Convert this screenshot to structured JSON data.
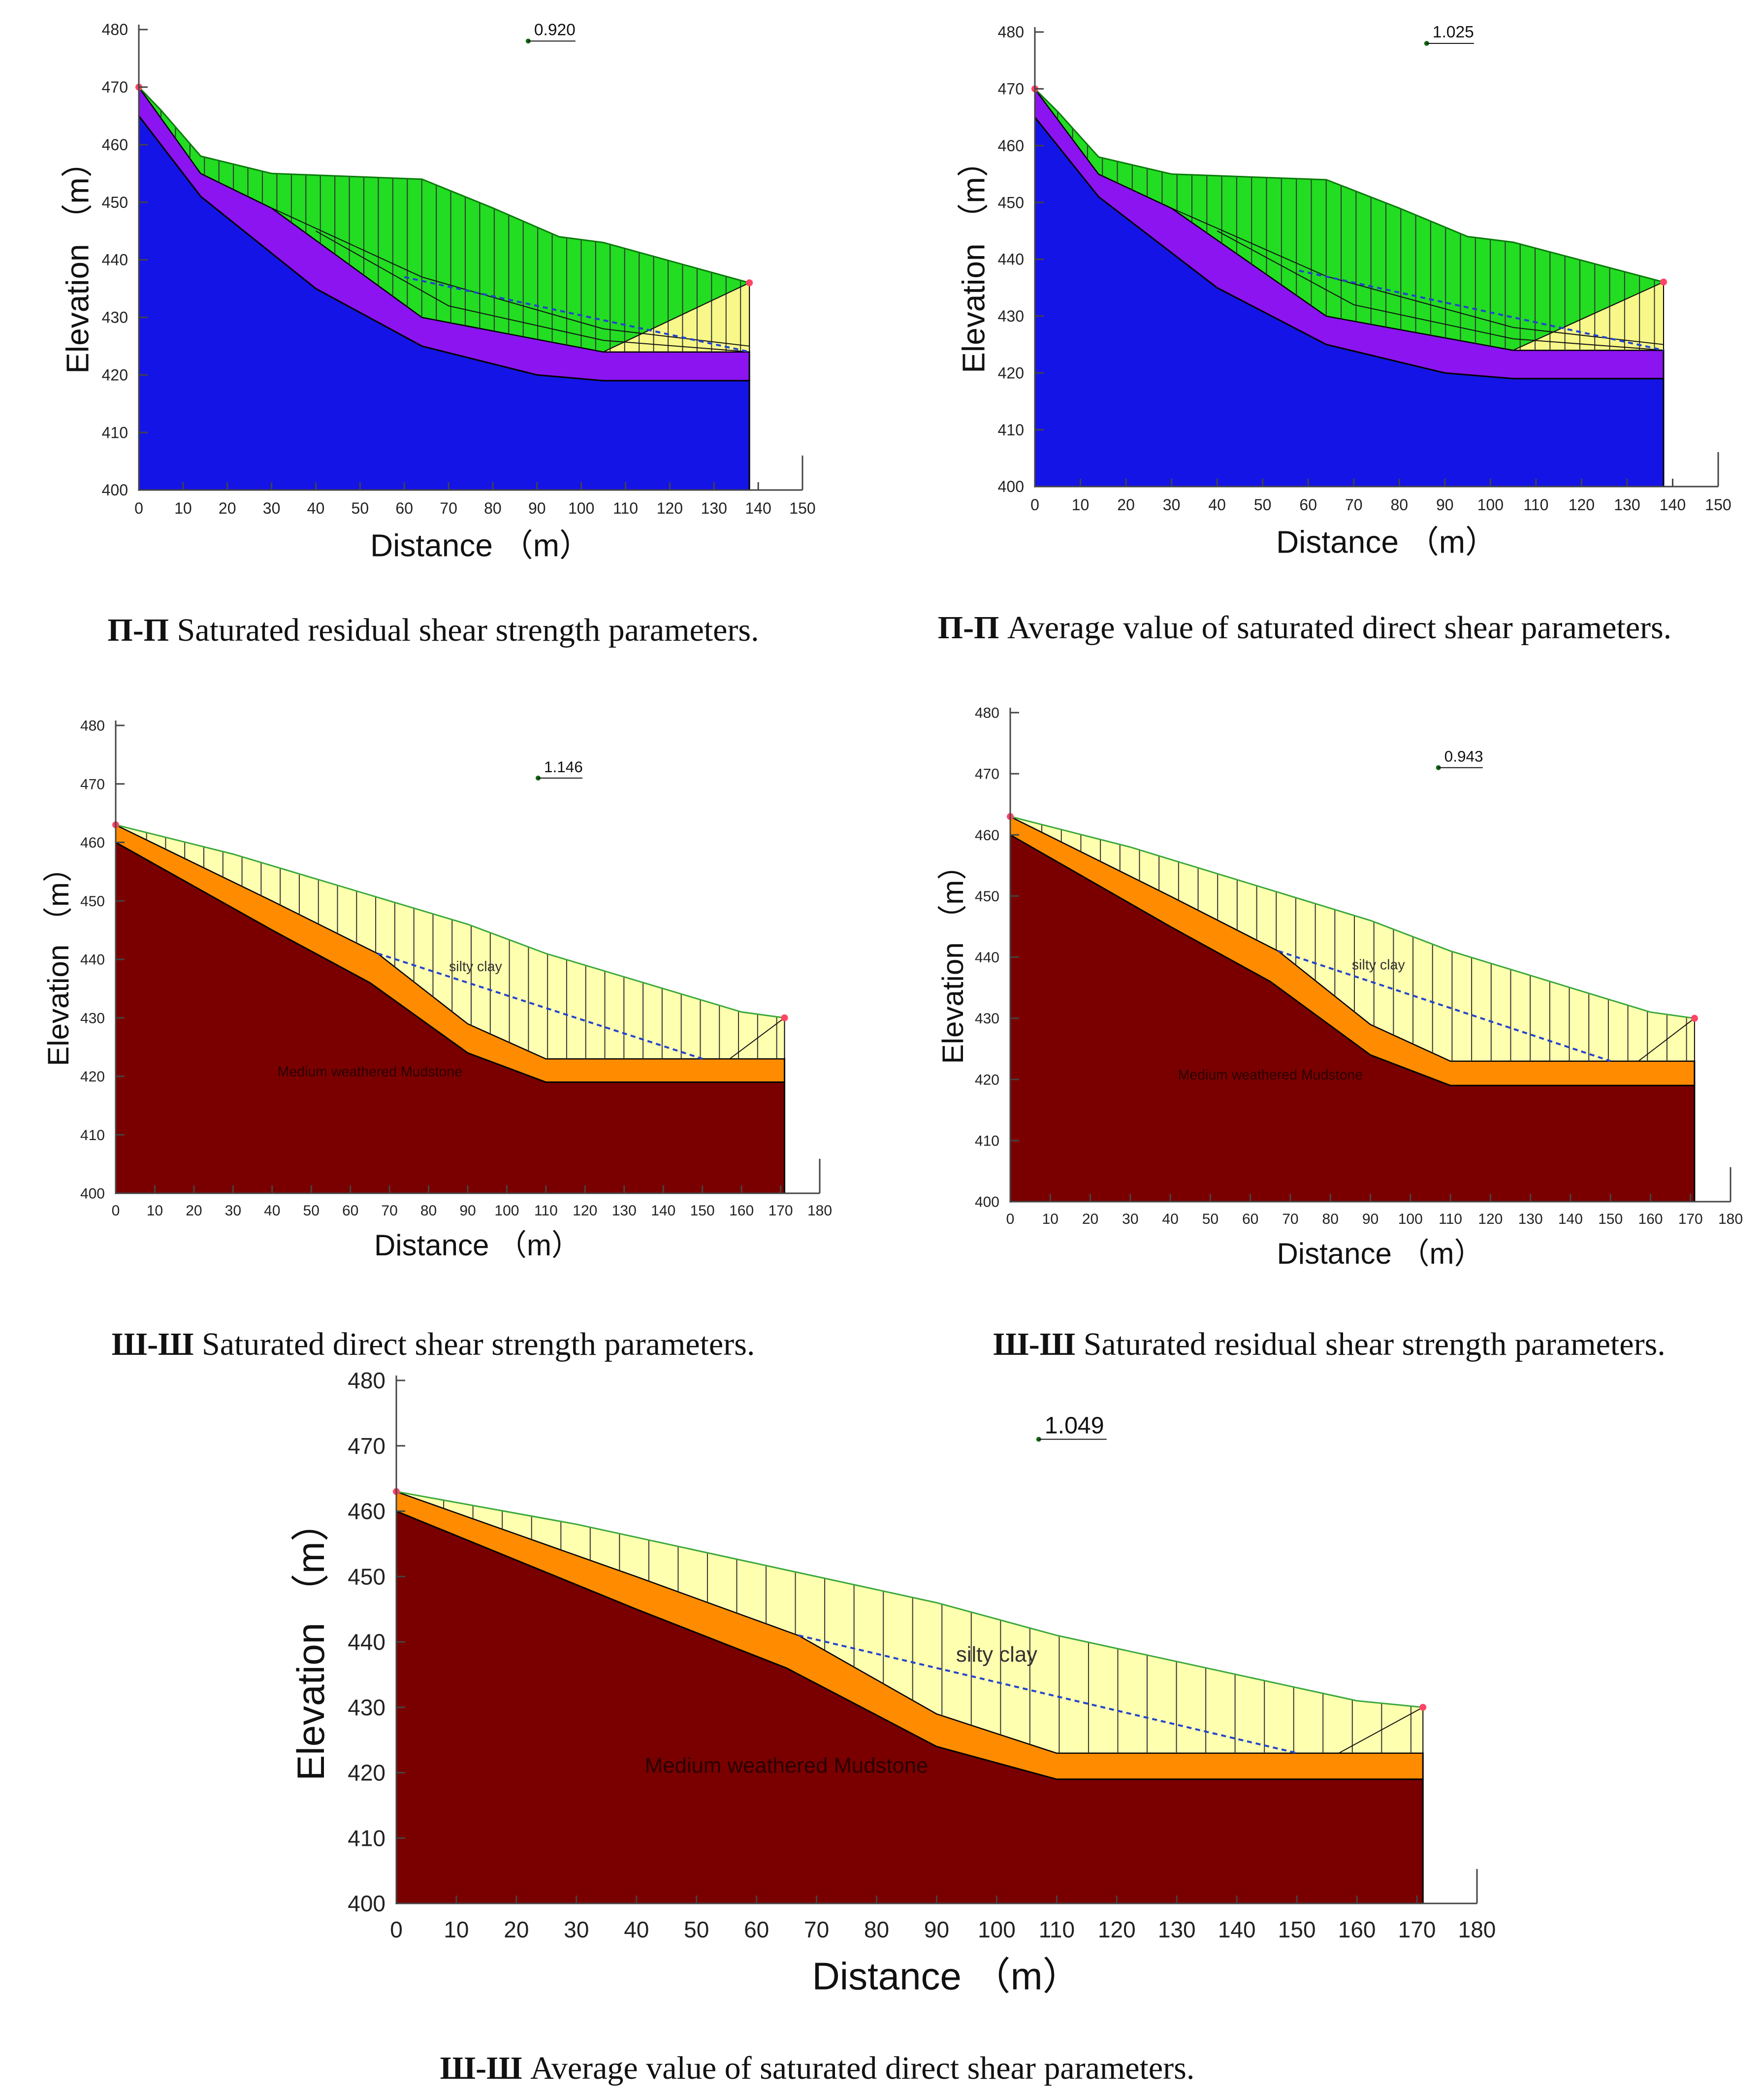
{
  "colors": {
    "bedrock_blue": "#1414e6",
    "weak_purple": "#8b14f0",
    "slide_green": "#22dd22",
    "fill_yellow": "#f7f78a",
    "mudstone": "#7a0000",
    "weak_orange": "#ff8c00",
    "silty_clay": "#ffffb0",
    "slip_dash": "#2244cc"
  },
  "panels": [
    {
      "id": "p1",
      "section": "Π-Π",
      "caption": "Saturated residual shear strength parameters.",
      "factor_of_safety": "0.920",
      "scheme": "blue-green",
      "chart_data": {
        "type": "geotechnical-section",
        "xlabel": "Distance （m）",
        "ylabel": "Elevation （m）",
        "xlim": [
          0,
          150
        ],
        "ylim": [
          400,
          480
        ],
        "xticks": [
          "0",
          "10",
          "20",
          "30",
          "40",
          "50",
          "60",
          "70",
          "80",
          "90",
          "100",
          "110",
          "120",
          "130",
          "140",
          "150"
        ],
        "yticks": [
          "400",
          "410",
          "420",
          "430",
          "440",
          "450",
          "460",
          "470",
          "480"
        ],
        "fos_point": [
          88,
          478
        ],
        "ground_surface": [
          [
            0,
            470
          ],
          [
            5,
            466
          ],
          [
            14,
            458
          ],
          [
            30,
            455
          ],
          [
            64,
            454
          ],
          [
            80,
            449
          ],
          [
            95,
            444
          ],
          [
            105,
            443
          ],
          [
            138,
            436
          ]
        ],
        "weak_layer_top": [
          [
            0,
            470
          ],
          [
            14,
            455
          ],
          [
            30,
            449
          ],
          [
            64,
            430
          ],
          [
            105,
            424
          ],
          [
            138,
            424
          ]
        ],
        "bedrock_top": [
          [
            0,
            465
          ],
          [
            14,
            451
          ],
          [
            40,
            435
          ],
          [
            64,
            425
          ],
          [
            90,
            420
          ],
          [
            105,
            419
          ],
          [
            138,
            419
          ]
        ],
        "slip_line": [
          [
            60,
            437
          ],
          [
            138,
            424
          ]
        ],
        "slice_count": 40,
        "labels": []
      }
    },
    {
      "id": "p2",
      "section": "Π-Π",
      "caption": "Average value of saturated direct shear parameters.",
      "factor_of_safety": "1.025",
      "scheme": "blue-green",
      "chart_data": {
        "type": "geotechnical-section",
        "xlabel": "Distance （m）",
        "ylabel": "Elevation （m）",
        "xlim": [
          0,
          150
        ],
        "ylim": [
          400,
          480
        ],
        "xticks": [
          "0",
          "10",
          "20",
          "30",
          "40",
          "50",
          "60",
          "70",
          "80",
          "90",
          "100",
          "110",
          "120",
          "130",
          "140",
          "150"
        ],
        "yticks": [
          "400",
          "410",
          "420",
          "430",
          "440",
          "450",
          "460",
          "470",
          "480"
        ],
        "fos_point": [
          86,
          478
        ],
        "ground_surface": [
          [
            0,
            470
          ],
          [
            5,
            466
          ],
          [
            14,
            458
          ],
          [
            30,
            455
          ],
          [
            64,
            454
          ],
          [
            80,
            449
          ],
          [
            95,
            444
          ],
          [
            105,
            443
          ],
          [
            138,
            436
          ]
        ],
        "weak_layer_top": [
          [
            0,
            470
          ],
          [
            14,
            455
          ],
          [
            30,
            449
          ],
          [
            64,
            430
          ],
          [
            105,
            424
          ],
          [
            138,
            424
          ]
        ],
        "bedrock_top": [
          [
            0,
            465
          ],
          [
            14,
            451
          ],
          [
            40,
            435
          ],
          [
            64,
            425
          ],
          [
            90,
            420
          ],
          [
            105,
            419
          ],
          [
            138,
            419
          ]
        ],
        "slip_line": [
          [
            58,
            438
          ],
          [
            138,
            424
          ]
        ],
        "slice_count": 40,
        "labels": []
      }
    },
    {
      "id": "p3",
      "section": "Ш-Ш",
      "caption": "Saturated direct shear strength parameters.",
      "factor_of_safety": "1.146",
      "scheme": "mudstone",
      "chart_data": {
        "type": "geotechnical-section",
        "xlabel": "Distance （m）",
        "ylabel": "Elevation （m）",
        "xlim": [
          0,
          180
        ],
        "ylim": [
          400,
          480
        ],
        "xticks": [
          "0",
          "10",
          "20",
          "30",
          "40",
          "50",
          "60",
          "70",
          "80",
          "90",
          "100",
          "110",
          "120",
          "130",
          "140",
          "150",
          "160",
          "170",
          "180"
        ],
        "yticks": [
          "400",
          "410",
          "420",
          "430",
          "440",
          "450",
          "460",
          "470",
          "480"
        ],
        "fos_point": [
          108,
          471
        ],
        "ground_surface": [
          [
            0,
            463
          ],
          [
            30,
            458
          ],
          [
            65,
            451
          ],
          [
            90,
            446
          ],
          [
            110,
            441
          ],
          [
            130,
            437
          ],
          [
            150,
            433
          ],
          [
            160,
            431
          ],
          [
            171,
            430
          ]
        ],
        "weak_layer_top": [
          [
            0,
            463
          ],
          [
            40,
            450
          ],
          [
            67,
            441
          ],
          [
            90,
            429
          ],
          [
            110,
            423
          ],
          [
            171,
            423
          ]
        ],
        "bedrock_top": [
          [
            0,
            460
          ],
          [
            40,
            445
          ],
          [
            65,
            436
          ],
          [
            90,
            424
          ],
          [
            110,
            419
          ],
          [
            171,
            419
          ]
        ],
        "slip_line": [
          [
            67,
            441
          ],
          [
            150,
            423
          ]
        ],
        "slice_count": 34,
        "labels": [
          {
            "text": "silty clay",
            "x": 92,
            "y": 438
          },
          {
            "text": "Medium weathered Mudstone",
            "x": 65,
            "y": 420
          }
        ]
      }
    },
    {
      "id": "p4",
      "section": "Ш-Ш",
      "caption": "Saturated residual shear strength parameters.",
      "factor_of_safety": "0.943",
      "scheme": "mudstone",
      "chart_data": {
        "type": "geotechnical-section",
        "xlabel": "Distance （m）",
        "ylabel": "Elevation （m）",
        "xlim": [
          0,
          180
        ],
        "ylim": [
          400,
          480
        ],
        "xticks": [
          "0",
          "10",
          "20",
          "30",
          "40",
          "50",
          "60",
          "70",
          "80",
          "90",
          "100",
          "110",
          "120",
          "130",
          "140",
          "150",
          "160",
          "170",
          "180"
        ],
        "yticks": [
          "400",
          "410",
          "420",
          "430",
          "440",
          "450",
          "460",
          "470",
          "480"
        ],
        "fos_point": [
          107,
          471
        ],
        "ground_surface": [
          [
            0,
            463
          ],
          [
            30,
            458
          ],
          [
            65,
            451
          ],
          [
            90,
            446
          ],
          [
            110,
            441
          ],
          [
            130,
            437
          ],
          [
            150,
            433
          ],
          [
            160,
            431
          ],
          [
            171,
            430
          ]
        ],
        "weak_layer_top": [
          [
            0,
            463
          ],
          [
            40,
            450
          ],
          [
            67,
            441
          ],
          [
            90,
            429
          ],
          [
            110,
            423
          ],
          [
            171,
            423
          ]
        ],
        "bedrock_top": [
          [
            0,
            460
          ],
          [
            40,
            445
          ],
          [
            65,
            436
          ],
          [
            90,
            424
          ],
          [
            110,
            419
          ],
          [
            171,
            419
          ]
        ],
        "slip_line": [
          [
            67,
            441
          ],
          [
            150,
            423
          ]
        ],
        "slice_count": 34,
        "labels": [
          {
            "text": "silty clay",
            "x": 92,
            "y": 438
          },
          {
            "text": "Medium weathered Mudstone",
            "x": 65,
            "y": 420
          }
        ]
      }
    },
    {
      "id": "p5",
      "section": "Ш-Ш",
      "caption": "Average value of saturated direct shear parameters.",
      "factor_of_safety": "1.049",
      "scheme": "mudstone",
      "chart_data": {
        "type": "geotechnical-section",
        "xlabel": "Distance （m）",
        "ylabel": "Elevation （m）",
        "xlim": [
          0,
          180
        ],
        "ylim": [
          400,
          480
        ],
        "xticks": [
          "0",
          "10",
          "20",
          "30",
          "40",
          "50",
          "60",
          "70",
          "80",
          "90",
          "100",
          "110",
          "120",
          "130",
          "140",
          "150",
          "160",
          "170",
          "180"
        ],
        "yticks": [
          "400",
          "410",
          "420",
          "430",
          "440",
          "450",
          "460",
          "470",
          "480"
        ],
        "fos_point": [
          107,
          471
        ],
        "ground_surface": [
          [
            0,
            463
          ],
          [
            30,
            458
          ],
          [
            65,
            451
          ],
          [
            90,
            446
          ],
          [
            110,
            441
          ],
          [
            130,
            437
          ],
          [
            150,
            433
          ],
          [
            160,
            431
          ],
          [
            171,
            430
          ]
        ],
        "weak_layer_top": [
          [
            0,
            463
          ],
          [
            40,
            450
          ],
          [
            67,
            441
          ],
          [
            90,
            429
          ],
          [
            110,
            423
          ],
          [
            171,
            423
          ]
        ],
        "bedrock_top": [
          [
            0,
            460
          ],
          [
            40,
            445
          ],
          [
            65,
            436
          ],
          [
            90,
            424
          ],
          [
            110,
            419
          ],
          [
            171,
            419
          ]
        ],
        "slip_line": [
          [
            67,
            441
          ],
          [
            150,
            423
          ]
        ],
        "slice_count": 34,
        "labels": [
          {
            "text": "silty clay",
            "x": 100,
            "y": 437
          },
          {
            "text": "Medium weathered Mudstone",
            "x": 65,
            "y": 420
          }
        ]
      }
    }
  ]
}
